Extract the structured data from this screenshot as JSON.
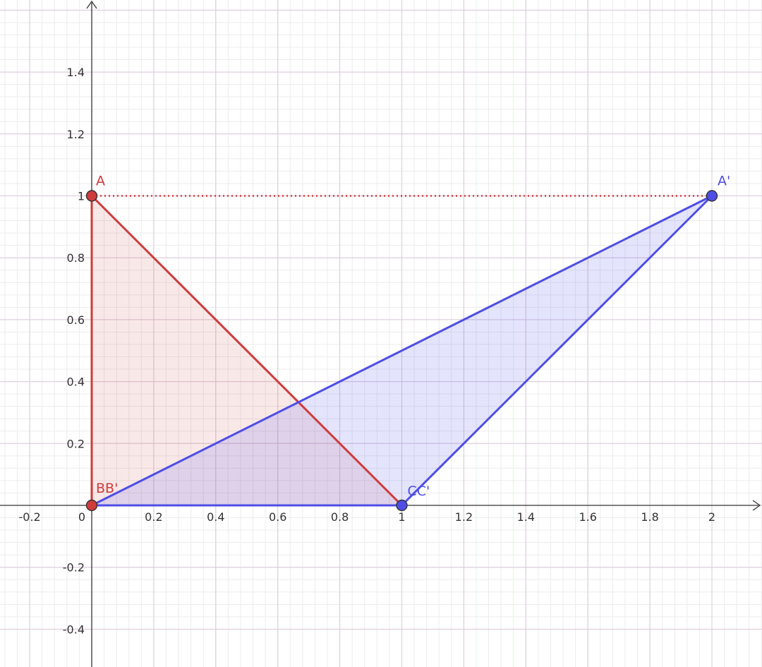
{
  "x_ticks": [
    {
      "value": -0.2,
      "label": "-0.2"
    },
    {
      "value": 0.2,
      "label": "0.2"
    },
    {
      "value": 0.4,
      "label": "0.4"
    },
    {
      "value": 0.6,
      "label": "0.6"
    },
    {
      "value": 0.8,
      "label": "0.8"
    },
    {
      "value": 1,
      "label": "1"
    },
    {
      "value": 1.2,
      "label": "1.2"
    },
    {
      "value": 1.4,
      "label": "1.4"
    },
    {
      "value": 1.6,
      "label": "1.6"
    },
    {
      "value": 1.8,
      "label": "1.8"
    },
    {
      "value": 2,
      "label": "2"
    }
  ],
  "y_ticks": [
    {
      "value": -0.4,
      "label": "-0.4"
    },
    {
      "value": -0.2,
      "label": "-0.2"
    },
    {
      "value": 0.2,
      "label": "0.2"
    },
    {
      "value": 0.4,
      "label": "0.4"
    },
    {
      "value": 0.6,
      "label": "0.6"
    },
    {
      "value": 0.8,
      "label": "0.8"
    },
    {
      "value": 1,
      "label": "1"
    },
    {
      "value": 1.2,
      "label": "1.2"
    },
    {
      "value": 1.4,
      "label": "1.4"
    }
  ],
  "origin_label": "0",
  "colors": {
    "red": "#d03b3b",
    "blue": "#4e4ee6",
    "red_fill": "rgba(208,80,80,0.13)",
    "blue_fill": "rgba(95,95,240,0.17)",
    "major_grid": "#d8c8d8",
    "minor_grid": "#ececec"
  },
  "points": [
    {
      "id": "A",
      "label": "A",
      "x": 0,
      "y": 1,
      "color": "red"
    },
    {
      "id": "B",
      "label": "BB'",
      "x": 0,
      "y": 0,
      "color": "red"
    },
    {
      "id": "C",
      "label": "CC'",
      "x": 1,
      "y": 0,
      "color": "blue"
    },
    {
      "id": "Ap",
      "label": "A'",
      "x": 2,
      "y": 1,
      "color": "blue"
    }
  ],
  "triangles": [
    {
      "name": "red-triangle",
      "vertices": [
        [
          0,
          1
        ],
        [
          0,
          0
        ],
        [
          1,
          0
        ]
      ],
      "color": "red"
    },
    {
      "name": "blue-triangle",
      "vertices": [
        [
          0,
          0
        ],
        [
          1,
          0
        ],
        [
          2,
          1
        ]
      ],
      "color": "blue"
    }
  ],
  "dotted_segment": {
    "from": [
      0,
      1
    ],
    "to": [
      2,
      1
    ],
    "color": "red"
  }
}
